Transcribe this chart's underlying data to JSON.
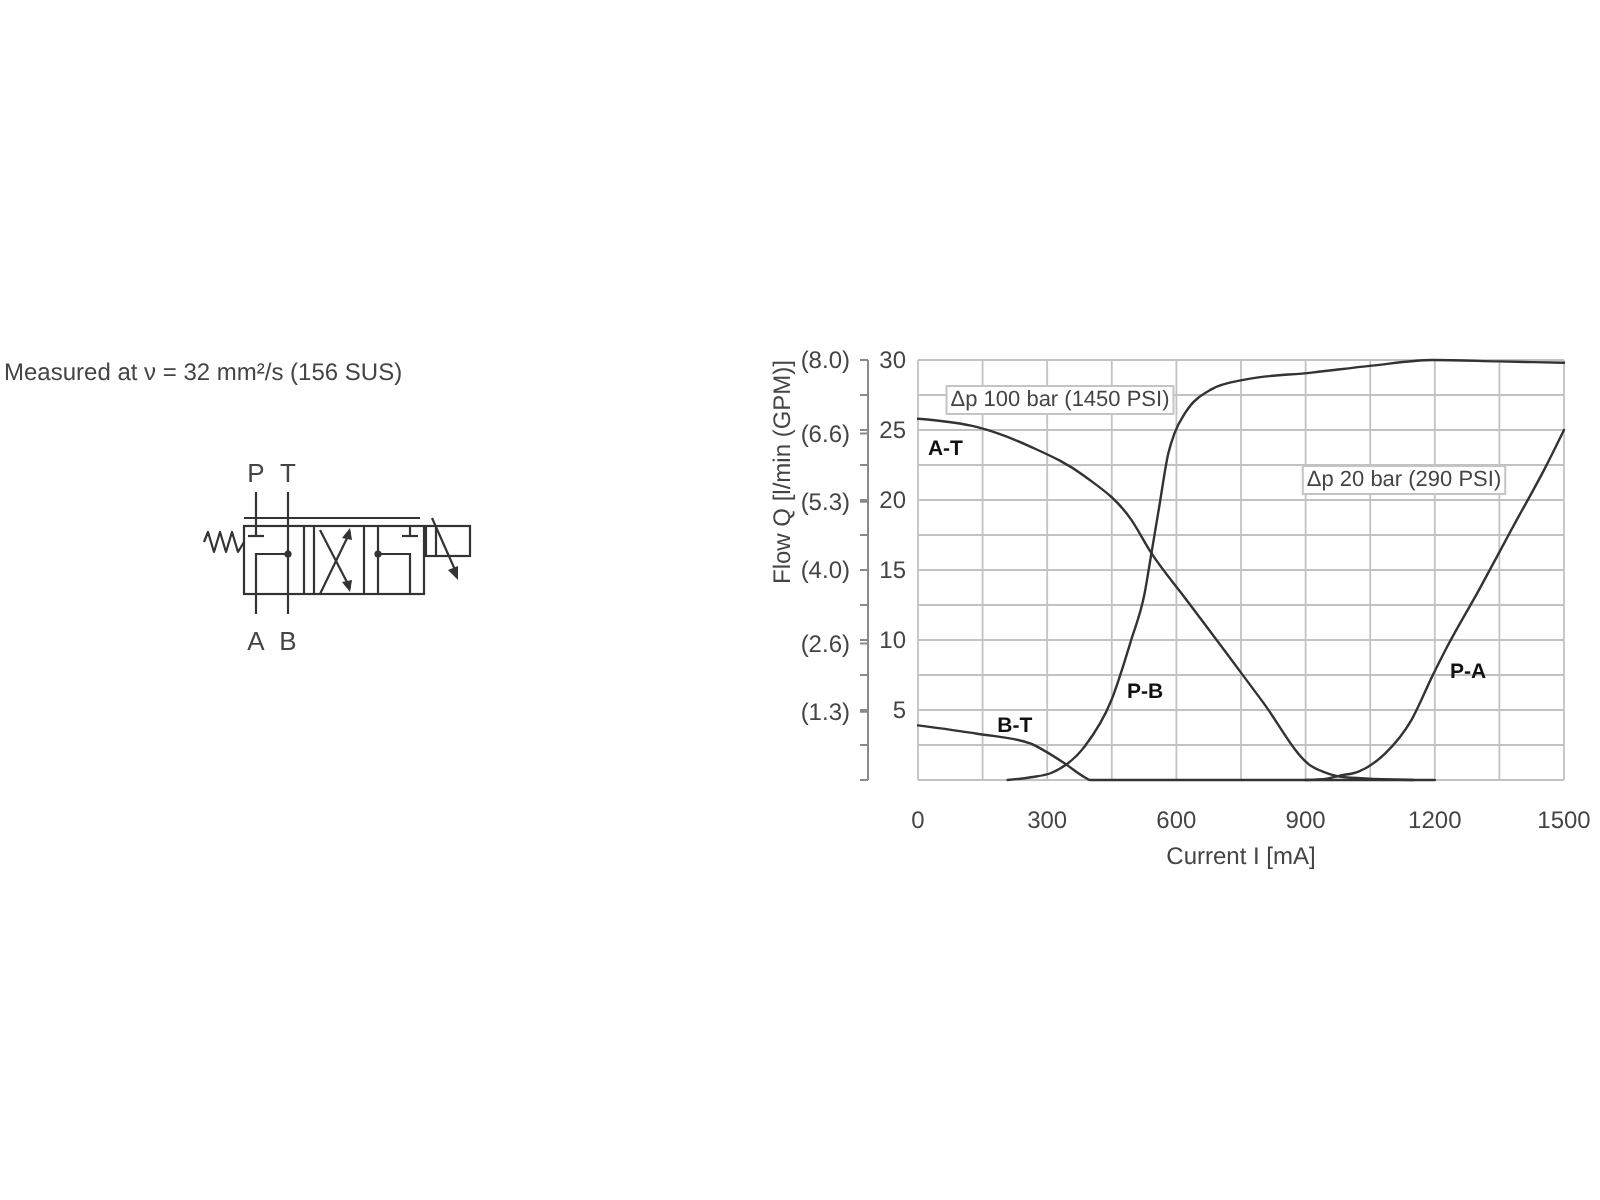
{
  "chart_data": {
    "type": "line",
    "xlabel": "Current I [mA]",
    "y2label": "Flow Q [l/min (GPM)]",
    "xlim": [
      0,
      1500
    ],
    "xticks": [
      0,
      {
        "value": 150,
        "label": null
      },
      300,
      {
        "value": 450,
        "label": null
      },
      600,
      {
        "value": 750,
        "label": null
      },
      900,
      {
        "value": 1050,
        "label": null
      },
      1200,
      {
        "value": 1350,
        "label": null
      },
      1500
    ],
    "ylim": [
      0,
      30
    ],
    "yticks": [
      {
        "value": 0,
        "label": null
      },
      {
        "value": 2.5,
        "label": null
      },
      5,
      {
        "value": 7.5,
        "label": null
      },
      10,
      {
        "value": 12.5,
        "label": null
      },
      15,
      {
        "value": 17.5,
        "label": null
      },
      20,
      {
        "value": 22.5,
        "label": null
      },
      25,
      {
        "value": 27.5,
        "label": null
      },
      30
    ],
    "y2lim": [
      0,
      8.0
    ],
    "y2ticks": [
      {
        "value": 1.3,
        "label": "(1.3)"
      },
      {
        "value": 2.6,
        "label": "(2.6)"
      },
      {
        "value": 4.0,
        "label": "(4.0)"
      },
      {
        "value": 5.3,
        "label": "(5.3)"
      },
      {
        "value": 6.6,
        "label": "(6.6)"
      },
      {
        "value": 8.0,
        "label": "(8.0)"
      }
    ],
    "grid": true,
    "series": [
      {
        "name": "A-T",
        "color": "#333333",
        "x": [
          0,
          138,
          262,
          387,
          495,
          542,
          620,
          713,
          800,
          913,
          940,
          990,
          1150
        ],
        "values": [
          25.8,
          25.2,
          23.8,
          21.7,
          18.6,
          16.2,
          13.0,
          9.2,
          5.6,
          1.0,
          0.6,
          0.2,
          0
        ]
      },
      {
        "name": "B-T",
        "color": "#333333",
        "x": [
          0,
          138,
          262,
          293,
          340,
          387,
          400,
          1200
        ],
        "values": [
          3.9,
          3.3,
          2.6,
          2.1,
          1.2,
          0.2,
          0,
          0
        ]
      },
      {
        "name": "P-B",
        "color": "#333333",
        "x": [
          208,
          262,
          309,
          387,
          449,
          495,
          526,
          542,
          560,
          581,
          596,
          620,
          681,
          759,
          914,
          1054,
          1194,
          1349,
          1500
        ],
        "values": [
          0,
          0.2,
          0.5,
          2.4,
          5.7,
          10.0,
          13.3,
          16.2,
          19.5,
          23.3,
          24.8,
          26.2,
          27.9,
          28.6,
          29.1,
          29.6,
          30,
          29.9,
          29.8
        ]
      },
      {
        "name": "P-A",
        "color": "#333333",
        "x": [
          900,
          950,
          977,
          1023,
          1085,
          1146,
          1194,
          1225,
          1303,
          1380,
          1458,
          1500
        ],
        "values": [
          0,
          0.1,
          0.3,
          0.6,
          1.9,
          4.3,
          7.4,
          9.3,
          13.6,
          18.0,
          22.4,
          25
        ]
      }
    ],
    "annotations": [
      "Measured at ν = 32 mm²/s (156 SUS)",
      "P",
      "T",
      "A",
      "B",
      "Δp 100 bar (1450 PSI)",
      "Δp 20 bar (290 PSI)"
    ]
  }
}
